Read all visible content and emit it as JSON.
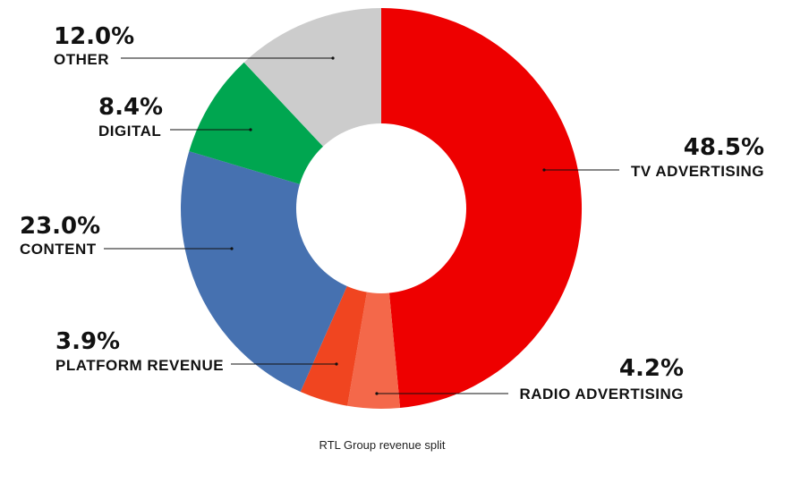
{
  "chart_data": {
    "type": "pie",
    "donut": true,
    "caption": "RTL Group revenue split",
    "slices": [
      {
        "label": "TV ADVERTISING",
        "value": 48.5,
        "display": "48.5%",
        "color": "#ee0000"
      },
      {
        "label": "RADIO ADVERTISING",
        "value": 4.2,
        "display": "4.2%",
        "color": "#f4684a"
      },
      {
        "label": "PLATFORM REVENUE",
        "value": 3.9,
        "display": "3.9%",
        "color": "#f04520"
      },
      {
        "label": "CONTENT",
        "value": 23.0,
        "display": "23.0%",
        "color": "#4671b0"
      },
      {
        "label": "DIGITAL",
        "value": 8.4,
        "display": "8.4%",
        "color": "#00a650"
      },
      {
        "label": "OTHER",
        "value": 12.0,
        "display": "12.0%",
        "color": "#cccccc"
      }
    ],
    "legend": "none"
  }
}
